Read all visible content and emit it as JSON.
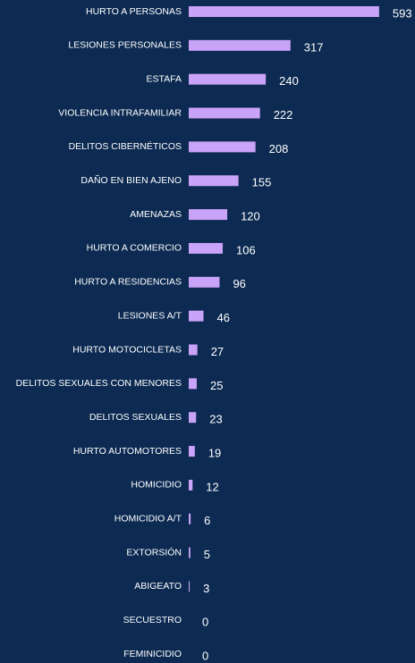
{
  "chart_data": {
    "type": "bar",
    "orientation": "horizontal",
    "color": "#c9a3f7",
    "categories": [
      "HURTO A PERSONAS",
      "LESIONES PERSONALES",
      "ESTAFA",
      "VIOLENCIA INTRAFAMILIAR",
      "DELITOS CIBERNÉTICOS",
      "DAÑO EN BIEN AJENO",
      "AMENAZAS",
      "HURTO A COMERCIO",
      "HURTO A RESIDENCIAS",
      "LESIONES A/T",
      "HURTO MOTOCICLETAS",
      "DELITOS SEXUALES CON MENORES",
      "DELITOS SEXUALES",
      "HURTO AUTOMOTORES",
      "HOMICIDIO",
      "HOMICIDIO A/T",
      "EXTORSIÓN",
      "ABIGEATO",
      "SECUESTRO",
      "FEMINICIDIO"
    ],
    "values": [
      593,
      317,
      240,
      222,
      208,
      155,
      120,
      106,
      96,
      46,
      27,
      25,
      23,
      19,
      12,
      6,
      5,
      3,
      0,
      0
    ]
  }
}
